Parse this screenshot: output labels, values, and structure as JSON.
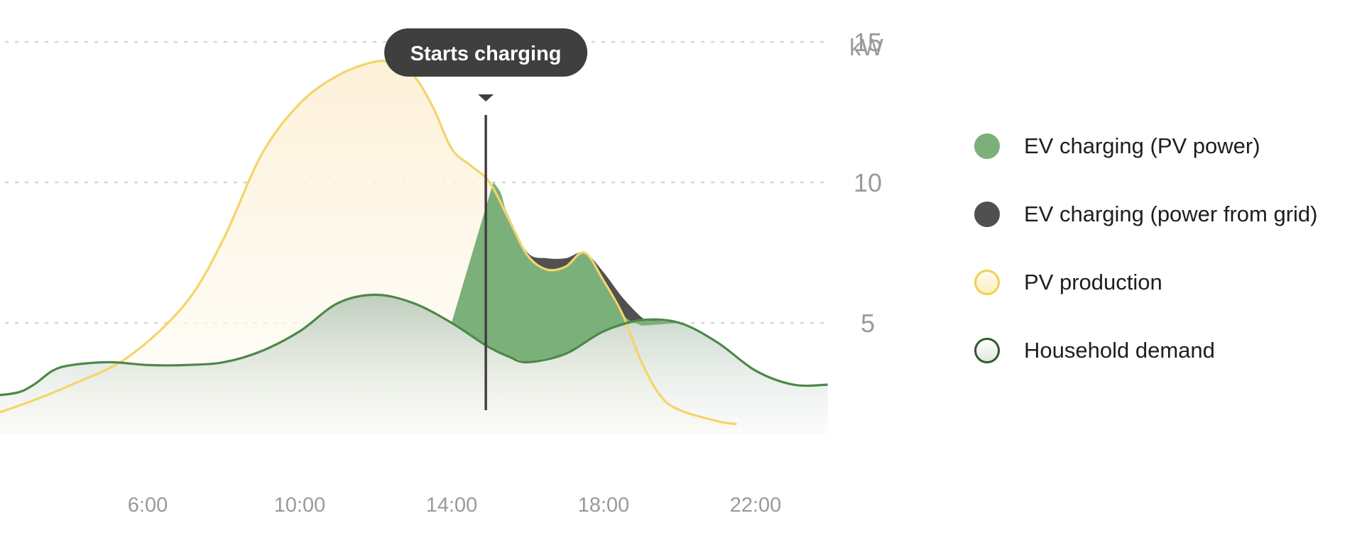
{
  "chart_data": {
    "type": "area",
    "unit": "kW",
    "x_ticks": [
      "6:00",
      "10:00",
      "14:00",
      "18:00",
      "22:00"
    ],
    "y_ticks": [
      5,
      10,
      15
    ],
    "ylim": [
      0,
      16
    ],
    "xlim": [
      0.5,
      23.9
    ],
    "grid": true,
    "legend_position": "right",
    "annotation": {
      "text": "Starts charging",
      "x": 14.9
    },
    "series": [
      {
        "name": "PV production",
        "color": "#f4d46a",
        "x": [
          1.3,
          2.5,
          4,
          5.5,
          7,
          8,
          9,
          10,
          11,
          12,
          12.5,
          13,
          13.5,
          14,
          14.5,
          15,
          15.5,
          16,
          16.5,
          17,
          17.5,
          18,
          18.5,
          19,
          19.5,
          20,
          21,
          21.5
        ],
        "y": [
          1.5,
          2,
          2.8,
          3.8,
          5.7,
          8,
          11,
          12.8,
          13.8,
          14.3,
          14.2,
          13.8,
          12.7,
          11.2,
          10.6,
          10,
          8.7,
          7.4,
          6.9,
          7,
          7.5,
          6.5,
          5.3,
          3.6,
          2.4,
          1.9,
          1.5,
          1.4
        ]
      },
      {
        "name": "Household demand",
        "color": "#4c8847",
        "x": [
          0.5,
          1.5,
          2.5,
          3,
          3.5,
          4,
          5,
          6,
          7,
          8,
          9,
          10,
          11,
          12,
          13,
          14,
          14.9,
          15.5,
          16,
          17,
          18,
          19,
          20,
          21,
          22,
          23,
          23.9
        ],
        "y": [
          2.5,
          2.4,
          2.5,
          2.8,
          3.3,
          3.5,
          3.6,
          3.5,
          3.5,
          3.6,
          4,
          4.7,
          5.7,
          6.0,
          5.7,
          5,
          4.2,
          3.8,
          3.6,
          3.9,
          4.7,
          5.1,
          5.0,
          4.3,
          3.3,
          2.8,
          2.8
        ]
      },
      {
        "name": "EV charging (PV power)",
        "color": "#7cb07b",
        "x": [
          15.1,
          15.3,
          15.5,
          16,
          16.5,
          17,
          17.5,
          18,
          18.5,
          19
        ],
        "y": [
          10.0,
          9.6,
          8.7,
          7.4,
          6.9,
          7,
          7.5,
          6.5,
          5.3,
          4.9
        ]
      },
      {
        "name": "EV charging (power from grid)",
        "color": "#505050",
        "x": [
          15.1,
          15.5,
          16,
          16.5,
          17,
          17.5,
          18,
          18.5,
          19,
          19.2
        ],
        "y": [
          10.0,
          8.8,
          7.5,
          7.3,
          7.3,
          7.5,
          6.8,
          5.9,
          5.2,
          5.1
        ]
      }
    ]
  },
  "legend": {
    "items": [
      {
        "label": "EV charging (PV power)",
        "fill": "#7cb07b",
        "border": "#7cb07b"
      },
      {
        "label": "EV charging (power from grid)",
        "fill": "#505050",
        "border": "#505050"
      },
      {
        "label": "PV production",
        "fill": "#fbefbd",
        "border": "#f1cf53"
      },
      {
        "label": "Household demand",
        "fill": "#dfe8e0",
        "border": "#2f5a2e"
      }
    ]
  }
}
